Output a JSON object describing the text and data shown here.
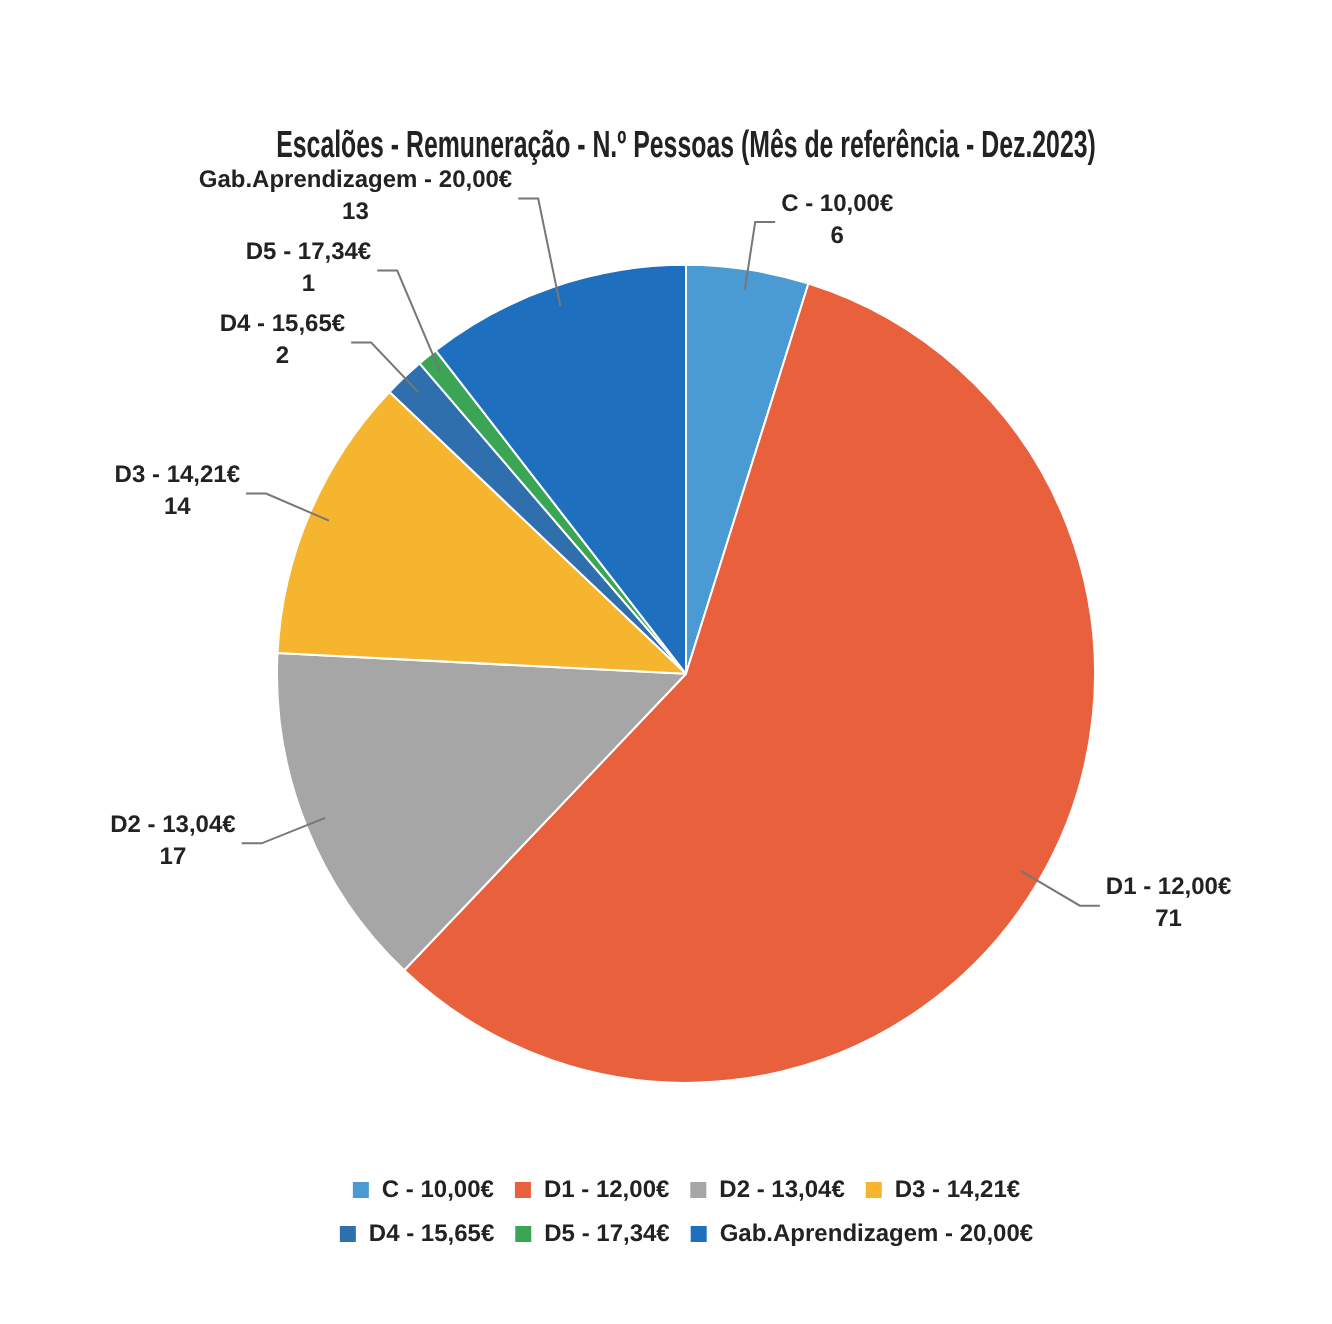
{
  "chart_data": {
    "type": "pie",
    "title": "Escalões - Remuneração - N.º Pessoas (Mês de referência - Dez.2023)",
    "categories": [
      "C - 10,00€",
      "D1 - 12,00€",
      "D2 - 13,04€",
      "D3 - 14,21€",
      "D4 - 15,65€",
      "D5 - 17,34€",
      "Gab.Aprendizagem - 20,00€"
    ],
    "values": [
      6,
      71,
      17,
      14,
      2,
      1,
      13
    ],
    "colors": [
      "#4a9bd4",
      "#e8603c",
      "#a6a6a6",
      "#f5b52e",
      "#2f6fad",
      "#3aa655",
      "#1f6fbf"
    ],
    "data_labels": true,
    "legend": "bottom"
  }
}
